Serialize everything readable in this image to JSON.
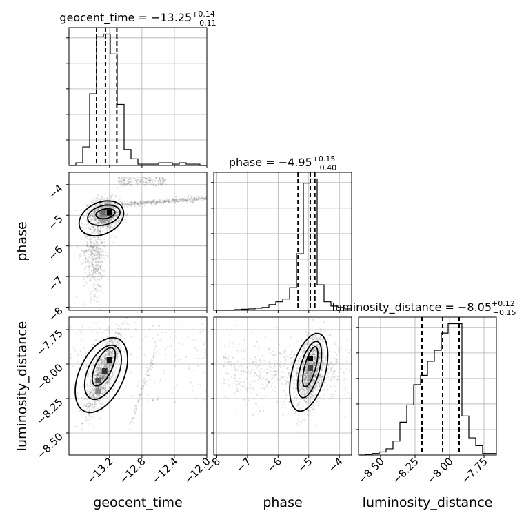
{
  "chart_data": {
    "type": "corner",
    "parameters": [
      "geocent_time",
      "phase",
      "luminosity_distance"
    ],
    "titles": [
      {
        "param": "geocent_time",
        "label": "geocent_time = ",
        "median": "−13.25",
        "plus": "+0.14",
        "minus": "−0.11"
      },
      {
        "param": "phase",
        "label": "phase = ",
        "median": "−4.95",
        "plus": "+0.15",
        "minus": "−0.40"
      },
      {
        "param": "luminosity_distance",
        "label": "luminosity_distance = ",
        "median": "−8.05",
        "plus": "+0.12",
        "minus": "−0.15"
      }
    ],
    "axis_labels": {
      "x": [
        "geocent_time",
        "phase",
        "luminosity_distance"
      ],
      "y": [
        "",
        "phase",
        "luminosity_distance"
      ]
    },
    "ranges": {
      "geocent_time": [
        -13.7,
        -12.0
      ],
      "phase": [
        -8.1,
        -3.6
      ],
      "luminosity_distance": [
        -8.66,
        -7.66
      ]
    },
    "ticks": {
      "geocent_time": {
        "values": [
          -13.2,
          -12.8,
          -12.4,
          -12.0
        ],
        "labels": [
          "−13.2",
          "−12.8",
          "−12.4",
          "−12.0"
        ]
      },
      "phase": {
        "values": [
          -8,
          -7,
          -6,
          -5,
          -4
        ],
        "labels": [
          "−8",
          "−7",
          "−6",
          "−5",
          "−4"
        ]
      },
      "luminosity_distance": {
        "values": [
          -8.5,
          -8.25,
          -8.0,
          -7.75
        ],
        "labels": [
          "−8.50",
          "−8.25",
          "−8.00",
          "−7.75"
        ]
      }
    },
    "quantiles": {
      "geocent_time": [
        -13.36,
        -13.25,
        -13.11
      ],
      "phase": [
        -5.35,
        -4.95,
        -4.8
      ],
      "luminosity_distance": [
        -8.2,
        -8.05,
        -7.93
      ]
    },
    "histograms": {
      "geocent_time": {
        "edges": [
          -13.7,
          -13.615,
          -13.53,
          -13.445,
          -13.36,
          -13.275,
          -13.19,
          -13.105,
          -13.02,
          -12.935,
          -12.85,
          -12.765,
          -12.68,
          -12.595,
          -12.51,
          -12.425,
          -12.34,
          -12.255,
          -12.17,
          -12.085,
          -12.0
        ],
        "counts": [
          0,
          2,
          14,
          54,
          97,
          99,
          84,
          46,
          12,
          5,
          1,
          1,
          1,
          2,
          2,
          1,
          2,
          1,
          1,
          0
        ]
      },
      "phase": {
        "edges": [
          -8.1,
          -7.875,
          -7.65,
          -7.425,
          -7.2,
          -6.975,
          -6.75,
          -6.525,
          -6.3,
          -6.075,
          -5.85,
          -5.625,
          -5.4,
          -5.175,
          -4.95,
          -4.725,
          -4.5,
          -4.275,
          -4.05,
          -3.825,
          -3.6
        ],
        "counts": [
          0,
          0,
          0,
          0.5,
          0.8,
          1,
          1.5,
          2,
          4,
          6,
          8,
          16,
          40,
          90,
          93,
          18,
          6,
          3,
          2,
          1
        ]
      },
      "luminosity_distance": {
        "edges": [
          -8.66,
          -8.61,
          -8.56,
          -8.51,
          -8.46,
          -8.41,
          -8.36,
          -8.31,
          -8.26,
          -8.21,
          -8.16,
          -8.11,
          -8.06,
          -8.01,
          -7.96,
          -7.91,
          -7.86,
          -7.81,
          -7.76,
          -7.71,
          -7.66
        ],
        "counts": [
          0,
          0.5,
          1,
          2,
          4,
          9,
          21,
          32,
          45,
          51,
          60,
          67,
          78,
          84,
          84,
          25,
          11,
          6,
          1,
          1
        ]
      }
    },
    "grid": true
  }
}
